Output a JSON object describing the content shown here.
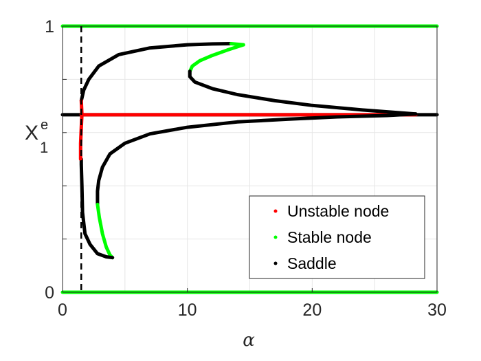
{
  "chart_data": {
    "type": "line",
    "title": "",
    "xlabel": "α",
    "ylabel": {
      "base": "X",
      "superscript": "e",
      "subscript": "1"
    },
    "xlim": [
      0,
      30
    ],
    "ylim": [
      0,
      1
    ],
    "x_ticks": [
      0,
      10,
      20,
      30
    ],
    "x_tick_labels": [
      "0",
      "10",
      "20",
      "30"
    ],
    "y_ticks": [
      0,
      1
    ],
    "y_tick_labels": [
      "0",
      "1"
    ],
    "grid": true,
    "legend_position": "bottom-right",
    "vertical_reference_line": {
      "x": 1.5,
      "style": "dashed",
      "color": "#000000"
    },
    "legend": [
      {
        "label": "Unstable node",
        "color": "#ff0000"
      },
      {
        "label": "Stable node",
        "color": "#00ff00"
      },
      {
        "label": "Saddle",
        "color": "#000000"
      }
    ],
    "series": [
      {
        "name": "Stable node",
        "color": "#00ff00",
        "points": [
          [
            0,
            1
          ],
          [
            30,
            1
          ]
        ]
      },
      {
        "name": "Stable node",
        "color": "#00ff00",
        "points": [
          [
            0,
            0
          ],
          [
            30,
            0
          ]
        ]
      },
      {
        "name": "Saddle",
        "color": "#000000",
        "points": [
          [
            0,
            0.667
          ],
          [
            30,
            0.667
          ]
        ]
      },
      {
        "name": "Unstable node",
        "color": "#ff0000",
        "points": [
          [
            1.5,
            0.667
          ],
          [
            28.3,
            0.667
          ]
        ]
      },
      {
        "name": "Saddle",
        "color": "#000000",
        "points": [
          [
            1.5,
            0.72
          ],
          [
            1.7,
            0.76
          ],
          [
            2.1,
            0.8
          ],
          [
            2.9,
            0.85
          ],
          [
            4.5,
            0.893
          ],
          [
            7,
            0.918
          ],
          [
            10,
            0.93
          ],
          [
            12,
            0.933
          ],
          [
            13.5,
            0.934
          ]
        ]
      },
      {
        "name": "Stable node",
        "color": "#00ff00",
        "points": [
          [
            13.5,
            0.934
          ],
          [
            14.5,
            0.93
          ],
          [
            13.2,
            0.91
          ],
          [
            12,
            0.89
          ],
          [
            11,
            0.87
          ],
          [
            10.4,
            0.85
          ],
          [
            10.2,
            0.83
          ]
        ]
      },
      {
        "name": "Saddle",
        "color": "#000000",
        "points": [
          [
            10.2,
            0.83
          ],
          [
            10.2,
            0.81
          ],
          [
            10.6,
            0.79
          ],
          [
            12,
            0.765
          ],
          [
            14,
            0.743
          ],
          [
            17,
            0.72
          ],
          [
            20,
            0.702
          ],
          [
            24,
            0.685
          ],
          [
            28.3,
            0.67
          ]
        ]
      },
      {
        "name": "Saddle",
        "color": "#000000",
        "points": [
          [
            28.3,
            0.67
          ],
          [
            26,
            0.664
          ],
          [
            22,
            0.659
          ],
          [
            18,
            0.65
          ],
          [
            14,
            0.64
          ],
          [
            10,
            0.62
          ],
          [
            7,
            0.595
          ],
          [
            5,
            0.56
          ],
          [
            3.8,
            0.52
          ],
          [
            3.2,
            0.47
          ],
          [
            2.9,
            0.42
          ],
          [
            2.8,
            0.38
          ],
          [
            2.8,
            0.33
          ]
        ]
      },
      {
        "name": "Stable node",
        "color": "#00ff00",
        "points": [
          [
            2.8,
            0.33
          ],
          [
            2.95,
            0.28
          ],
          [
            3.2,
            0.22
          ],
          [
            3.5,
            0.17
          ],
          [
            3.8,
            0.14
          ],
          [
            4.0,
            0.13
          ]
        ]
      },
      {
        "name": "Saddle",
        "color": "#000000",
        "points": [
          [
            4.0,
            0.13
          ],
          [
            3.5,
            0.133
          ],
          [
            2.8,
            0.145
          ],
          [
            2.2,
            0.18
          ],
          [
            1.8,
            0.22
          ],
          [
            1.6,
            0.3
          ],
          [
            1.55,
            0.4
          ],
          [
            1.5,
            0.48
          ],
          [
            1.5,
            0.5
          ]
        ]
      },
      {
        "name": "Unstable node",
        "color": "#ff0000",
        "points": [
          [
            1.45,
            0.5
          ],
          [
            1.45,
            0.56
          ],
          [
            1.5,
            0.62
          ],
          [
            1.55,
            0.667
          ],
          [
            1.5,
            0.72
          ]
        ]
      }
    ]
  }
}
